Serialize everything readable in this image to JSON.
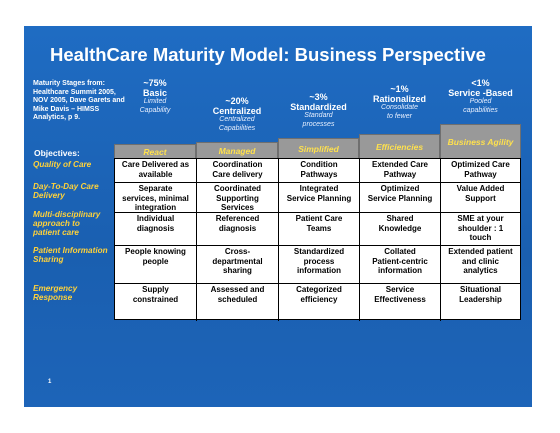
{
  "title": "HealthCare Maturity Model: Business Perspective",
  "source_lines": [
    "Maturity Stages from:",
    "Healthcare Summit 2005,",
    "NOV 2005, Dave Garets and",
    "Mike Davis – HIMSS",
    "Analytics, p 9."
  ],
  "objectives_label": "Objectives:",
  "stages": [
    {
      "pct": "~75%",
      "name": "Basic",
      "desc": [
        "Limited",
        "Capability"
      ],
      "step": [
        "React"
      ]
    },
    {
      "pct": "~20%",
      "name": "Centralized",
      "desc": [
        "Centralized",
        "Capabilities"
      ],
      "step": [
        "Managed"
      ]
    },
    {
      "pct": "~3%",
      "name": "Standardized",
      "desc": [
        "Standard",
        "processes"
      ],
      "step": [
        "Simplified"
      ]
    },
    {
      "pct": "~1%",
      "name": "Rationalized",
      "desc": [
        "Consolidate",
        "to fewer"
      ],
      "step": [
        "Efficiencies"
      ]
    },
    {
      "pct": "<1%",
      "name": "Service -Based",
      "desc": [
        "Pooled",
        "capabilities"
      ],
      "step": [
        "Business Agility"
      ]
    }
  ],
  "rows": [
    {
      "label": [
        "Quality of Care"
      ],
      "cells": [
        [
          "Care Delivered as",
          "available"
        ],
        [
          "Coordination",
          "Care delivery"
        ],
        [
          "Condition",
          "Pathways"
        ],
        [
          "Extended Care",
          "Pathway"
        ],
        [
          "Optimized Care",
          "Pathway"
        ]
      ]
    },
    {
      "label": [
        "Day-To-Day Care",
        "Delivery"
      ],
      "cells": [
        [
          "Separate",
          "services, minimal",
          "integration"
        ],
        [
          "Coordinated",
          "Supporting",
          "Services"
        ],
        [
          "Integrated",
          "Service Planning"
        ],
        [
          "Optimized",
          "Service Planning"
        ],
        [
          "Value Added",
          "Support"
        ]
      ]
    },
    {
      "label": [
        "Multi-disciplinary",
        "approach to",
        "patient care"
      ],
      "cells": [
        [
          "Individual",
          "diagnosis"
        ],
        [
          "Referenced",
          "diagnosis"
        ],
        [
          "Patient Care",
          "Teams"
        ],
        [
          "Shared",
          "Knowledge"
        ],
        [
          "SME at your",
          "shoulder : 1",
          "touch"
        ]
      ]
    },
    {
      "label": [
        "Patient Information",
        "Sharing"
      ],
      "cells": [
        [
          "People knowing",
          "people"
        ],
        [
          "Cross-",
          "departmental",
          "sharing"
        ],
        [
          "Standardized",
          "process",
          "information"
        ],
        [
          "Collated",
          "Patient-centric",
          "information"
        ],
        [
          "Extended patient",
          "and clinic",
          "analytics"
        ]
      ]
    },
    {
      "label": [
        "Emergency",
        "Response"
      ],
      "cells": [
        [
          "Supply",
          "constrained"
        ],
        [
          "Assessed and",
          "scheduled"
        ],
        [
          "Categorized",
          "efficiency"
        ],
        [
          "Service",
          "Effectiveness"
        ],
        [
          "Situational",
          "Leadership"
        ]
      ]
    }
  ],
  "page_number": "1",
  "colors": {
    "background": "#1b61b3",
    "label": "#ffd23a",
    "step_text": "#ffe14d",
    "step_fill": "#999999"
  }
}
